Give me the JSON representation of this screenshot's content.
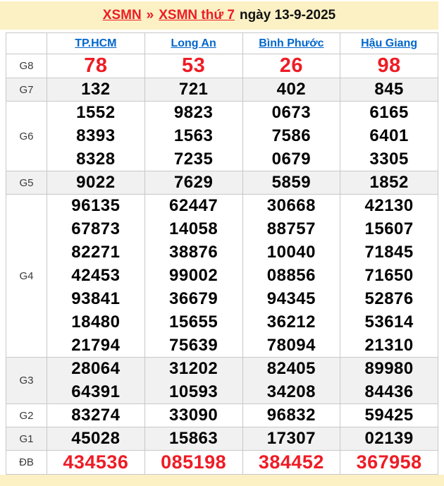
{
  "title": {
    "home_link": "XSMN",
    "separator": "»",
    "page_link": "XSMN thứ 7",
    "date_text": "ngày 13-9-2025"
  },
  "colors": {
    "accent_red": "#ee1c25",
    "link_blue": "#0066cc",
    "band_yellow": "#fbf1c4",
    "row_shade": "#f1f1f1",
    "border_gray": "#c8c8c8"
  },
  "table": {
    "corner_label": "",
    "columns": [
      "TP.HCM",
      "Long An",
      "Bình Phước",
      "Hậu Giang"
    ],
    "groups": [
      {
        "label": "G8",
        "style": "g8",
        "shaded": false,
        "lines": [
          [
            "78",
            "53",
            "26",
            "98"
          ]
        ]
      },
      {
        "label": "G7",
        "style": "normal",
        "shaded": true,
        "lines": [
          [
            "132",
            "721",
            "402",
            "845"
          ]
        ]
      },
      {
        "label": "G6",
        "style": "normal",
        "shaded": false,
        "lines": [
          [
            "1552",
            "9823",
            "0673",
            "6165"
          ],
          [
            "8393",
            "1563",
            "7586",
            "6401"
          ],
          [
            "8328",
            "7235",
            "0679",
            "3305"
          ]
        ]
      },
      {
        "label": "G5",
        "style": "normal",
        "shaded": true,
        "lines": [
          [
            "9022",
            "7629",
            "5859",
            "1852"
          ]
        ]
      },
      {
        "label": "G4",
        "style": "normal",
        "shaded": false,
        "lines": [
          [
            "96135",
            "62447",
            "30668",
            "42130"
          ],
          [
            "67873",
            "14058",
            "88757",
            "15607"
          ],
          [
            "82271",
            "38876",
            "10040",
            "71845"
          ],
          [
            "42453",
            "99002",
            "08856",
            "71650"
          ],
          [
            "93841",
            "36679",
            "94345",
            "52876"
          ],
          [
            "18480",
            "15655",
            "36212",
            "53614"
          ],
          [
            "21794",
            "75639",
            "78094",
            "21310"
          ]
        ]
      },
      {
        "label": "G3",
        "style": "normal",
        "shaded": true,
        "lines": [
          [
            "28064",
            "31202",
            "82405",
            "89980"
          ],
          [
            "64391",
            "10593",
            "34208",
            "84436"
          ]
        ]
      },
      {
        "label": "G2",
        "style": "normal",
        "shaded": false,
        "lines": [
          [
            "83274",
            "33090",
            "96832",
            "59425"
          ]
        ]
      },
      {
        "label": "G1",
        "style": "normal",
        "shaded": true,
        "lines": [
          [
            "45028",
            "15863",
            "17307",
            "02139"
          ]
        ]
      },
      {
        "label": "ĐB",
        "style": "db",
        "shaded": false,
        "lines": [
          [
            "434536",
            "085198",
            "384452",
            "367958"
          ]
        ]
      }
    ]
  }
}
